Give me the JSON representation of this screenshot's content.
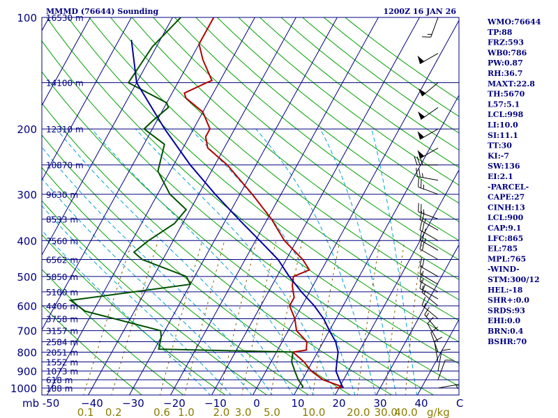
{
  "header": {
    "station_title": "MMMD (76644) Sounding",
    "valid_time": "1200Z 16 JAN 26"
  },
  "chart_data": {
    "type": "skew-t",
    "pressure_axis": {
      "ticks": [
        100,
        200,
        300,
        400,
        500,
        600,
        700,
        800,
        900,
        1000
      ],
      "unit_label": "mb"
    },
    "temperature_axis": {
      "ticks": [
        -50,
        -40,
        -30,
        -20,
        -10,
        0,
        10,
        20,
        30,
        40
      ],
      "end_label": "C"
    },
    "mixing_ratio_axis": {
      "ticks": [
        "0.1",
        "0.2",
        "0.6",
        "1.0",
        "2.0",
        "3.0",
        "5.0",
        "10.0",
        "20.0",
        "30.0",
        "40.0"
      ],
      "unit_label": "g/kg"
    },
    "height_labels": [
      {
        "p": 100,
        "label": "16530 m"
      },
      {
        "p": 150,
        "label": "14100 m"
      },
      {
        "p": 200,
        "label": "12310 m"
      },
      {
        "p": 250,
        "label": "10870 m"
      },
      {
        "p": 300,
        "label": "9630 m"
      },
      {
        "p": 350,
        "label": "8533 m"
      },
      {
        "p": 400,
        "label": "7560 m"
      },
      {
        "p": 450,
        "label": "6562 m"
      },
      {
        "p": 500,
        "label": "5850 m"
      },
      {
        "p": 550,
        "label": "5100 m"
      },
      {
        "p": 600,
        "label": "4406 m"
      },
      {
        "p": 650,
        "label": "3758 m"
      },
      {
        "p": 700,
        "label": "3157 m"
      },
      {
        "p": 750,
        "label": "2584 m"
      },
      {
        "p": 800,
        "label": "2051 m"
      },
      {
        "p": 850,
        "label": "1552 m"
      },
      {
        "p": 900,
        "label": "1073 m"
      },
      {
        "p": 950,
        "label": "618 m"
      },
      {
        "p": 1000,
        "label": "188 m"
      }
    ],
    "series": [
      {
        "color": "#b00000",
        "points": [
          [
            100,
            -60
          ],
          [
            118,
            -60
          ],
          [
            130,
            -57
          ],
          [
            148,
            -52
          ],
          [
            150,
            -53
          ],
          [
            160,
            -57
          ],
          [
            165,
            -56
          ],
          [
            180,
            -50
          ],
          [
            200,
            -46
          ],
          [
            210,
            -46
          ],
          [
            225,
            -44
          ],
          [
            250,
            -37
          ],
          [
            300,
            -27
          ],
          [
            350,
            -19
          ],
          [
            400,
            -13
          ],
          [
            450,
            -6
          ],
          [
            480,
            -3
          ],
          [
            500,
            -6
          ],
          [
            530,
            -5
          ],
          [
            570,
            -3
          ],
          [
            600,
            -3
          ],
          [
            650,
            0
          ],
          [
            700,
            2
          ],
          [
            750,
            6
          ],
          [
            790,
            7
          ],
          [
            800,
            4
          ],
          [
            850,
            8
          ],
          [
            900,
            11
          ],
          [
            950,
            15
          ],
          [
            995,
            21
          ],
          [
            1000,
            19
          ]
        ]
      },
      {
        "color": "#005000",
        "points": [
          [
            100,
            -68
          ],
          [
            120,
            -71
          ],
          [
            150,
            -72
          ],
          [
            170,
            -60
          ],
          [
            175,
            -59
          ],
          [
            190,
            -61
          ],
          [
            200,
            -62
          ],
          [
            220,
            -55
          ],
          [
            260,
            -53
          ],
          [
            300,
            -47
          ],
          [
            330,
            -41
          ],
          [
            360,
            -42
          ],
          [
            400,
            -46
          ],
          [
            430,
            -48
          ],
          [
            450,
            -45
          ],
          [
            500,
            -32
          ],
          [
            525,
            -30
          ],
          [
            580,
            -57
          ],
          [
            620,
            -52
          ],
          [
            700,
            -31
          ],
          [
            730,
            -30
          ],
          [
            785,
            -29
          ],
          [
            800,
            4
          ],
          [
            850,
            5
          ],
          [
            900,
            7
          ],
          [
            950,
            9
          ],
          [
            990,
            11
          ],
          [
            1000,
            11
          ]
        ]
      },
      {
        "color": "#0000a0",
        "points": [
          [
            115,
            -77
          ],
          [
            150,
            -70
          ],
          [
            200,
            -57
          ],
          [
            250,
            -46
          ],
          [
            300,
            -36
          ],
          [
            350,
            -27
          ],
          [
            400,
            -19
          ],
          [
            450,
            -12
          ],
          [
            500,
            -7
          ],
          [
            550,
            -2
          ],
          [
            600,
            3
          ],
          [
            650,
            7
          ],
          [
            700,
            10
          ],
          [
            750,
            13
          ],
          [
            800,
            15
          ],
          [
            850,
            16
          ],
          [
            900,
            17
          ],
          [
            950,
            19
          ],
          [
            1000,
            21
          ]
        ]
      }
    ],
    "winds": [
      {
        "p": 100,
        "dir": 200,
        "spd": 15
      },
      {
        "p": 125,
        "dir": 240,
        "spd": 50
      },
      {
        "p": 150,
        "dir": 230,
        "spd": 50
      },
      {
        "p": 175,
        "dir": 235,
        "spd": 50
      },
      {
        "p": 200,
        "dir": 240,
        "spd": 50
      },
      {
        "p": 225,
        "dir": 240,
        "spd": 50
      },
      {
        "p": 250,
        "dir": 270,
        "spd": 30
      },
      {
        "p": 275,
        "dir": 280,
        "spd": 25
      },
      {
        "p": 300,
        "dir": 290,
        "spd": 25
      },
      {
        "p": 350,
        "dir": 290,
        "spd": 25
      },
      {
        "p": 375,
        "dir": 300,
        "spd": 25
      },
      {
        "p": 400,
        "dir": 300,
        "spd": 25
      },
      {
        "p": 425,
        "dir": 300,
        "spd": 25
      },
      {
        "p": 450,
        "dir": 300,
        "spd": 20
      },
      {
        "p": 500,
        "dir": 300,
        "spd": 20
      },
      {
        "p": 525,
        "dir": 300,
        "spd": 15
      },
      {
        "p": 550,
        "dir": 300,
        "spd": 15
      },
      {
        "p": 575,
        "dir": 300,
        "spd": 15
      },
      {
        "p": 600,
        "dir": 310,
        "spd": 15
      },
      {
        "p": 650,
        "dir": 310,
        "spd": 15
      },
      {
        "p": 700,
        "dir": 320,
        "spd": 15
      },
      {
        "p": 750,
        "dir": 330,
        "spd": 10
      },
      {
        "p": 800,
        "dir": 340,
        "spd": 10
      },
      {
        "p": 850,
        "dir": 350,
        "spd": 10
      },
      {
        "p": 900,
        "dir": 10,
        "spd": 10
      },
      {
        "p": 950,
        "dir": 20,
        "spd": 10
      },
      {
        "p": 1000,
        "dir": 80,
        "spd": 5
      }
    ]
  },
  "indices": [
    "WMO:76644",
    "TP:88",
    "FRZ:593",
    "WB0:786",
    "PW:0.87",
    "RH:36.7",
    "MAXT:22.8",
    "TH:5670",
    "L57:5.1",
    "LCL:998",
    "LI:10.0",
    "SI:11.1",
    "TT:30",
    "KI:-7",
    "SW:136",
    "EI:2.1",
    "-PARCEL-",
    "CAPE:27",
    "CINH:13",
    "LCL:900",
    "CAP:9.1",
    "LFC:865",
    "EL:785",
    "MPL:765",
    "-WIND-",
    "STM:300/12",
    "HEL:-18",
    "SHR+:0.0",
    "SRDS:93",
    "EHI:0.0",
    "BRN:0.4",
    "BSHR:70"
  ],
  "colors": {
    "frame": "#000080",
    "isotherm": "#000080",
    "isobar": "#000080",
    "dry_adiabat": "#00a000",
    "moist_adiabat": "#00a0d0",
    "mixing_ratio": "#806000",
    "temperature": "#b00000",
    "dewpoint": "#005000",
    "parcel": "#0000a0"
  }
}
